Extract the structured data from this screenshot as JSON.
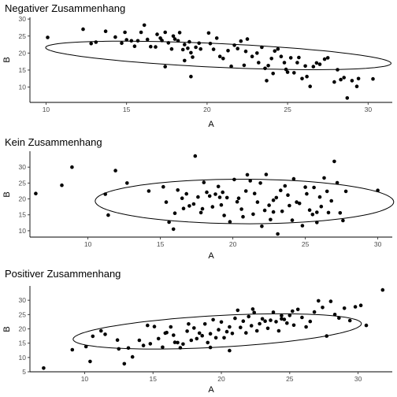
{
  "chart_data": [
    {
      "type": "scatter",
      "title": "Negativer Zusammenhang",
      "xlabel": "A",
      "ylabel": "B",
      "xlim": [
        9.0,
        31.5
      ],
      "ylim": [
        5.5,
        30.5
      ],
      "xticks": [
        10,
        15,
        20,
        25,
        30
      ],
      "yticks": [
        10,
        15,
        20,
        25,
        30
      ],
      "ellipse": {
        "cx": 20.7,
        "cy": 19.3,
        "rx": 11.0,
        "ry": 3.4,
        "angle_deg": -13.5
      },
      "points": [
        [
          10.1,
          24.6
        ],
        [
          12.3,
          27.0
        ],
        [
          12.8,
          22.8
        ],
        [
          13.1,
          23.2
        ],
        [
          13.7,
          26.4
        ],
        [
          14.3,
          24.7
        ],
        [
          14.7,
          22.9
        ],
        [
          14.9,
          26.1
        ],
        [
          15.0,
          23.9
        ],
        [
          15.3,
          23.6
        ],
        [
          15.5,
          22.0
        ],
        [
          15.7,
          23.6
        ],
        [
          15.9,
          26.1
        ],
        [
          16.1,
          28.2
        ],
        [
          16.3,
          24.0
        ],
        [
          16.5,
          21.9
        ],
        [
          16.8,
          21.8
        ],
        [
          16.9,
          25.5
        ],
        [
          17.1,
          24.4
        ],
        [
          17.2,
          23.7
        ],
        [
          17.4,
          26.1
        ],
        [
          17.6,
          23.0
        ],
        [
          17.8,
          21.2
        ],
        [
          17.9,
          25.0
        ],
        [
          18.0,
          24.1
        ],
        [
          18.2,
          23.6
        ],
        [
          18.3,
          26.0
        ],
        [
          18.5,
          21.0
        ],
        [
          18.6,
          22.5
        ],
        [
          18.8,
          21.4
        ],
        [
          18.9,
          23.3
        ],
        [
          19.0,
          20.1
        ],
        [
          19.1,
          18.8
        ],
        [
          19.3,
          21.7
        ],
        [
          19.5,
          22.9
        ],
        [
          19.6,
          21.2
        ],
        [
          17.4,
          16.0
        ],
        [
          18.6,
          17.8
        ],
        [
          19.0,
          13.1
        ],
        [
          20.1,
          25.9
        ],
        [
          20.2,
          22.8
        ],
        [
          20.4,
          21.1
        ],
        [
          20.6,
          24.4
        ],
        [
          20.8,
          19.0
        ],
        [
          21.0,
          18.4
        ],
        [
          21.3,
          20.7
        ],
        [
          21.5,
          16.1
        ],
        [
          21.7,
          22.3
        ],
        [
          21.9,
          21.3
        ],
        [
          22.1,
          23.5
        ],
        [
          22.3,
          16.4
        ],
        [
          22.4,
          20.5
        ],
        [
          22.5,
          24.1
        ],
        [
          22.8,
          19.0
        ],
        [
          23.1,
          20.0
        ],
        [
          23.2,
          17.2
        ],
        [
          23.4,
          21.7
        ],
        [
          23.6,
          15.5
        ],
        [
          23.8,
          16.3
        ],
        [
          24.0,
          18.4
        ],
        [
          24.1,
          14.0
        ],
        [
          24.2,
          20.6
        ],
        [
          24.4,
          21.2
        ],
        [
          24.6,
          19.0
        ],
        [
          24.8,
          17.2
        ],
        [
          24.9,
          15.2
        ],
        [
          25.0,
          14.4
        ],
        [
          25.2,
          18.6
        ],
        [
          25.4,
          14.2
        ],
        [
          25.6,
          17.2
        ],
        [
          25.7,
          18.7
        ],
        [
          25.9,
          12.5
        ],
        [
          26.2,
          13.1
        ],
        [
          26.4,
          10.2
        ],
        [
          26.6,
          16.0
        ],
        [
          26.8,
          17.1
        ],
        [
          27.0,
          16.7
        ],
        [
          27.3,
          18.2
        ],
        [
          27.5,
          18.6
        ],
        [
          27.9,
          11.5
        ],
        [
          28.1,
          15.1
        ],
        [
          28.3,
          12.2
        ],
        [
          28.5,
          12.8
        ],
        [
          28.7,
          6.8
        ],
        [
          29.0,
          11.9
        ],
        [
          29.3,
          10.2
        ],
        [
          29.4,
          12.5
        ],
        [
          30.3,
          12.4
        ],
        [
          26.1,
          16.2
        ],
        [
          23.7,
          11.9
        ]
      ]
    },
    {
      "type": "scatter",
      "title": "Kein Zusammenhang",
      "xlabel": "A",
      "ylabel": "B",
      "xlim": [
        6.0,
        31.0
      ],
      "ylim": [
        8.0,
        35.0
      ],
      "xticks": [
        10,
        15,
        20,
        25,
        30
      ],
      "yticks": [
        10,
        15,
        20,
        25,
        30
      ],
      "ellipse": {
        "cx": 20.8,
        "cy": 19.2,
        "rx": 10.3,
        "ry": 7.0,
        "angle_deg": -1.5
      },
      "points": [
        [
          6.4,
          21.7
        ],
        [
          8.2,
          24.3
        ],
        [
          8.9,
          30.0
        ],
        [
          11.2,
          21.5
        ],
        [
          11.4,
          14.9
        ],
        [
          11.9,
          28.9
        ],
        [
          12.7,
          25.0
        ],
        [
          14.2,
          22.5
        ],
        [
          15.2,
          23.8
        ],
        [
          15.4,
          19.0
        ],
        [
          15.6,
          12.7
        ],
        [
          15.9,
          10.5
        ],
        [
          16.0,
          15.5
        ],
        [
          16.2,
          22.8
        ],
        [
          16.5,
          20.2
        ],
        [
          16.6,
          17.0
        ],
        [
          16.8,
          21.6
        ],
        [
          17.0,
          17.8
        ],
        [
          17.3,
          18.4
        ],
        [
          17.4,
          33.5
        ],
        [
          17.6,
          20.6
        ],
        [
          17.8,
          15.7
        ],
        [
          17.9,
          16.9
        ],
        [
          18.0,
          25.2
        ],
        [
          18.2,
          22.1
        ],
        [
          18.4,
          20.9
        ],
        [
          18.6,
          17.5
        ],
        [
          18.8,
          21.5
        ],
        [
          19.0,
          23.9
        ],
        [
          19.1,
          20.5
        ],
        [
          19.3,
          22.1
        ],
        [
          19.4,
          14.8
        ],
        [
          19.6,
          20.4
        ],
        [
          19.8,
          12.8
        ],
        [
          20.1,
          26.1
        ],
        [
          20.3,
          19.1
        ],
        [
          20.4,
          20.2
        ],
        [
          20.6,
          16.8
        ],
        [
          20.7,
          14.4
        ],
        [
          20.9,
          22.5
        ],
        [
          21.0,
          27.6
        ],
        [
          21.2,
          25.7
        ],
        [
          21.4,
          15.2
        ],
        [
          21.5,
          21.7
        ],
        [
          21.7,
          19.0
        ],
        [
          21.9,
          25.0
        ],
        [
          22.0,
          11.4
        ],
        [
          22.2,
          16.4
        ],
        [
          22.3,
          27.7
        ],
        [
          22.5,
          18.0
        ],
        [
          22.6,
          13.5
        ],
        [
          22.8,
          15.9
        ],
        [
          23.0,
          20.4
        ],
        [
          23.1,
          9.0
        ],
        [
          23.3,
          22.7
        ],
        [
          23.4,
          16.1
        ],
        [
          23.6,
          24.1
        ],
        [
          23.8,
          21.2
        ],
        [
          23.9,
          17.9
        ],
        [
          24.1,
          13.3
        ],
        [
          24.2,
          26.3
        ],
        [
          24.4,
          19.0
        ],
        [
          24.6,
          18.6
        ],
        [
          24.8,
          11.6
        ],
        [
          25.0,
          23.7
        ],
        [
          25.1,
          21.6
        ],
        [
          25.3,
          16.5
        ],
        [
          25.5,
          15.1
        ],
        [
          25.6,
          23.6
        ],
        [
          25.8,
          12.6
        ],
        [
          26.0,
          20.6
        ],
        [
          26.1,
          17.6
        ],
        [
          26.3,
          26.6
        ],
        [
          26.5,
          22.4
        ],
        [
          26.6,
          15.7
        ],
        [
          26.8,
          19.4
        ],
        [
          27.0,
          31.8
        ],
        [
          27.2,
          25.1
        ],
        [
          27.4,
          15.6
        ],
        [
          27.6,
          13.2
        ],
        [
          27.8,
          22.4
        ],
        [
          30.0,
          22.7
        ],
        [
          25.8,
          15.8
        ],
        [
          22.8,
          19.6
        ],
        [
          19.2,
          18.1
        ]
      ]
    },
    {
      "type": "scatter",
      "title": "Positiver Zusammenhang",
      "xlabel": "A",
      "ylabel": "B",
      "xlim": [
        6.0,
        32.5
      ],
      "ylim": [
        5.0,
        35.0
      ],
      "xticks": [
        10,
        15,
        20,
        25,
        30
      ],
      "yticks": [
        5,
        10,
        15,
        20,
        25,
        30
      ],
      "ellipse": {
        "cx": 19.7,
        "cy": 19.1,
        "rx": 11.0,
        "ry": 5.3,
        "angle_deg": 19.0
      },
      "points": [
        [
          7.0,
          6.3
        ],
        [
          9.1,
          12.7
        ],
        [
          10.1,
          13.8
        ],
        [
          10.4,
          8.6
        ],
        [
          10.6,
          17.4
        ],
        [
          11.2,
          19.3
        ],
        [
          11.5,
          18.1
        ],
        [
          12.4,
          16.1
        ],
        [
          12.9,
          7.8
        ],
        [
          13.2,
          13.3
        ],
        [
          13.5,
          10.2
        ],
        [
          14.0,
          16.0
        ],
        [
          14.3,
          14.2
        ],
        [
          14.6,
          21.2
        ],
        [
          14.8,
          14.8
        ],
        [
          15.1,
          20.8
        ],
        [
          15.4,
          16.6
        ],
        [
          15.7,
          13.6
        ],
        [
          16.0,
          18.7
        ],
        [
          16.3,
          20.7
        ],
        [
          16.5,
          17.8
        ],
        [
          16.8,
          15.2
        ],
        [
          17.0,
          13.4
        ],
        [
          17.2,
          14.7
        ],
        [
          17.5,
          19.2
        ],
        [
          17.8,
          16.0
        ],
        [
          18.0,
          20.3
        ],
        [
          18.2,
          16.6
        ],
        [
          18.4,
          18.5
        ],
        [
          18.6,
          17.6
        ],
        [
          18.8,
          21.7
        ],
        [
          19.0,
          15.2
        ],
        [
          19.2,
          18.3
        ],
        [
          19.4,
          23.2
        ],
        [
          19.6,
          16.9
        ],
        [
          19.8,
          19.7
        ],
        [
          20.0,
          22.4
        ],
        [
          20.2,
          16.9
        ],
        [
          20.4,
          19.0
        ],
        [
          20.6,
          20.7
        ],
        [
          20.8,
          18.4
        ],
        [
          21.0,
          23.7
        ],
        [
          21.2,
          26.5
        ],
        [
          21.4,
          20.5
        ],
        [
          21.6,
          22.7
        ],
        [
          21.8,
          18.6
        ],
        [
          22.0,
          24.3
        ],
        [
          22.2,
          21.1
        ],
        [
          22.4,
          25.7
        ],
        [
          22.6,
          19.3
        ],
        [
          22.8,
          21.8
        ],
        [
          23.0,
          23.5
        ],
        [
          23.2,
          22.7
        ],
        [
          23.4,
          20.2
        ],
        [
          23.6,
          23.0
        ],
        [
          23.8,
          25.8
        ],
        [
          24.0,
          22.5
        ],
        [
          24.2,
          19.3
        ],
        [
          24.4,
          24.6
        ],
        [
          24.6,
          23.3
        ],
        [
          24.8,
          22.0
        ],
        [
          25.0,
          24.7
        ],
        [
          25.3,
          21.3
        ],
        [
          25.6,
          26.8
        ],
        [
          25.9,
          24.0
        ],
        [
          26.2,
          20.7
        ],
        [
          26.5,
          22.6
        ],
        [
          26.8,
          25.9
        ],
        [
          27.1,
          29.8
        ],
        [
          27.4,
          27.5
        ],
        [
          27.7,
          17.5
        ],
        [
          28.0,
          29.6
        ],
        [
          28.3,
          25.0
        ],
        [
          28.6,
          23.8
        ],
        [
          29.0,
          27.2
        ],
        [
          29.4,
          22.9
        ],
        [
          29.8,
          27.7
        ],
        [
          30.2,
          28.2
        ],
        [
          30.6,
          21.2
        ],
        [
          31.8,
          33.6
        ],
        [
          25.2,
          26.2
        ],
        [
          22.3,
          26.9
        ],
        [
          17.6,
          21.7
        ],
        [
          15.9,
          18.5
        ],
        [
          12.5,
          13.0
        ],
        [
          20.6,
          12.4
        ],
        [
          19.2,
          13.5
        ],
        [
          24.4,
          23.5
        ],
        [
          16.6,
          15.3
        ]
      ]
    }
  ]
}
